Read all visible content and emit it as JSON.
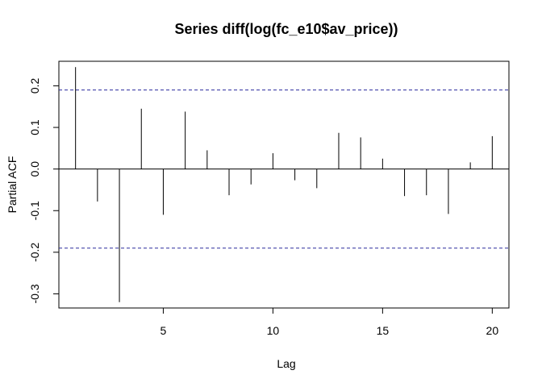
{
  "chart_data": {
    "type": "bar",
    "title": "Series  diff(log(fc_e10$av_price))",
    "xlabel": "Lag",
    "ylabel": "Partial ACF",
    "x": [
      1,
      2,
      3,
      4,
      5,
      6,
      7,
      8,
      9,
      10,
      11,
      12,
      13,
      14,
      15,
      16,
      17,
      18,
      19,
      20
    ],
    "values": [
      0.245,
      -0.078,
      -0.32,
      0.145,
      -0.11,
      0.138,
      0.045,
      -0.063,
      -0.037,
      0.038,
      -0.027,
      -0.046,
      0.087,
      0.076,
      0.025,
      -0.065,
      -0.063,
      -0.108,
      0.016,
      0.079
    ],
    "confidence_bound": 0.19,
    "xlim": [
      0.24,
      20.76
    ],
    "ylim": [
      -0.334,
      0.259
    ],
    "x_ticks": [
      5,
      10,
      15,
      20
    ],
    "x_tick_labels": [
      "5",
      "10",
      "15",
      "20"
    ],
    "y_ticks": [
      -0.3,
      -0.2,
      -0.1,
      0.0,
      0.1,
      0.2
    ],
    "y_tick_labels": [
      "-0.3",
      "-0.2",
      "-0.1",
      "0.0",
      "0.1",
      "0.2"
    ],
    "bound_color": "#2a2a9e",
    "bar_color": "#000000",
    "grid": false
  }
}
